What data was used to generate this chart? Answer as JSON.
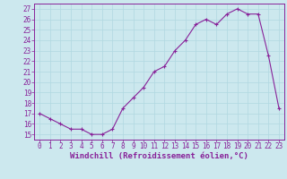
{
  "x": [
    0,
    1,
    2,
    3,
    4,
    5,
    6,
    7,
    8,
    9,
    10,
    11,
    12,
    13,
    14,
    15,
    16,
    17,
    18,
    19,
    20,
    21,
    22,
    23
  ],
  "y": [
    17,
    16.5,
    16,
    15.5,
    15.5,
    15,
    15,
    15.5,
    17.5,
    18.5,
    19.5,
    21,
    21.5,
    23,
    24,
    25.5,
    26,
    25.5,
    26.5,
    27,
    26.5,
    26.5,
    22.5,
    17.5
  ],
  "line_color": "#882299",
  "marker": "+",
  "bg_color": "#cce8ee",
  "grid_color": "#b0d8e0",
  "xlabel": "Windchill (Refroidissement éolien,°C)",
  "yticks": [
    15,
    16,
    17,
    18,
    19,
    20,
    21,
    22,
    23,
    24,
    25,
    26,
    27
  ],
  "xlim": [
    -0.5,
    23.5
  ],
  "ylim": [
    14.5,
    27.5
  ],
  "xlabel_color": "#882299",
  "tick_color": "#882299",
  "label_fontsize": 6.5,
  "tick_fontsize": 5.5,
  "markersize": 3,
  "linewidth": 0.8
}
